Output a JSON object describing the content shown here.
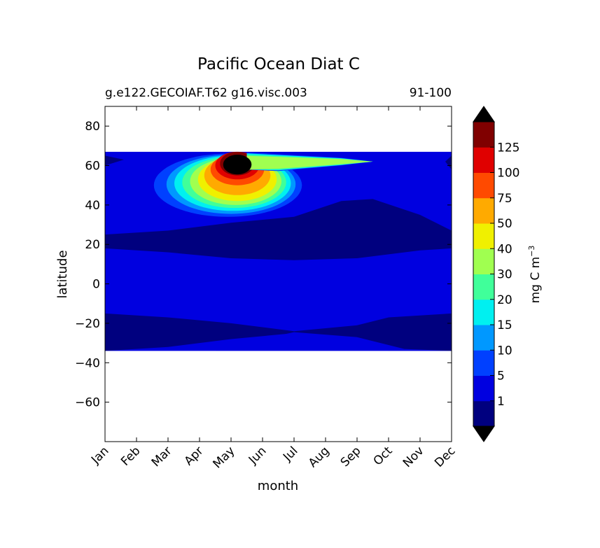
{
  "chart_data": {
    "type": "heatmap",
    "title": "Pacific Ocean Diat C",
    "subtitle_left": "g.e122.GECOIAF.T62 g16.visc.003",
    "subtitle_right": "91-100",
    "xlabel": "month",
    "ylabel": "latitude",
    "x_ticks": [
      "Jan",
      "Feb",
      "Mar",
      "Apr",
      "May",
      "Jun",
      "Jul",
      "Aug",
      "Sep",
      "Oct",
      "Nov",
      "Dec"
    ],
    "xlim": [
      1,
      12
    ],
    "y_ticks": [
      80,
      60,
      40,
      20,
      0,
      -20,
      -40,
      -60
    ],
    "y_tick_labels": [
      "80",
      "60",
      "40",
      "20",
      "0",
      "−20",
      "−40",
      "−60"
    ],
    "ylim": [
      -80,
      90
    ],
    "data_lat_range": [
      -34,
      67
    ],
    "grid": false,
    "colorbar": {
      "label": "mg C m",
      "label_superscript": "−3",
      "levels": [
        "1",
        "5",
        "10",
        "15",
        "20",
        "30",
        "40",
        "50",
        "75",
        "100",
        "125"
      ],
      "colors": [
        "#00007f",
        "#0000e0",
        "#0040ff",
        "#0098ff",
        "#00f0f0",
        "#40ff9a",
        "#a0ff50",
        "#f0f000",
        "#ffaa00",
        "#ff4a00",
        "#e00000",
        "#800000"
      ],
      "extend_min_color": "#000000",
      "extend_max_color": "#000000"
    },
    "regions": [
      {
        "level": "<1",
        "description": "tropical/subtropical bands 20-35N and 15-34S"
      },
      {
        "level": "1-5",
        "description": "background equatorial and high latitude"
      },
      {
        "level": ">125",
        "peak_month": "May",
        "peak_lat": [
          55,
          65
        ]
      }
    ]
  }
}
